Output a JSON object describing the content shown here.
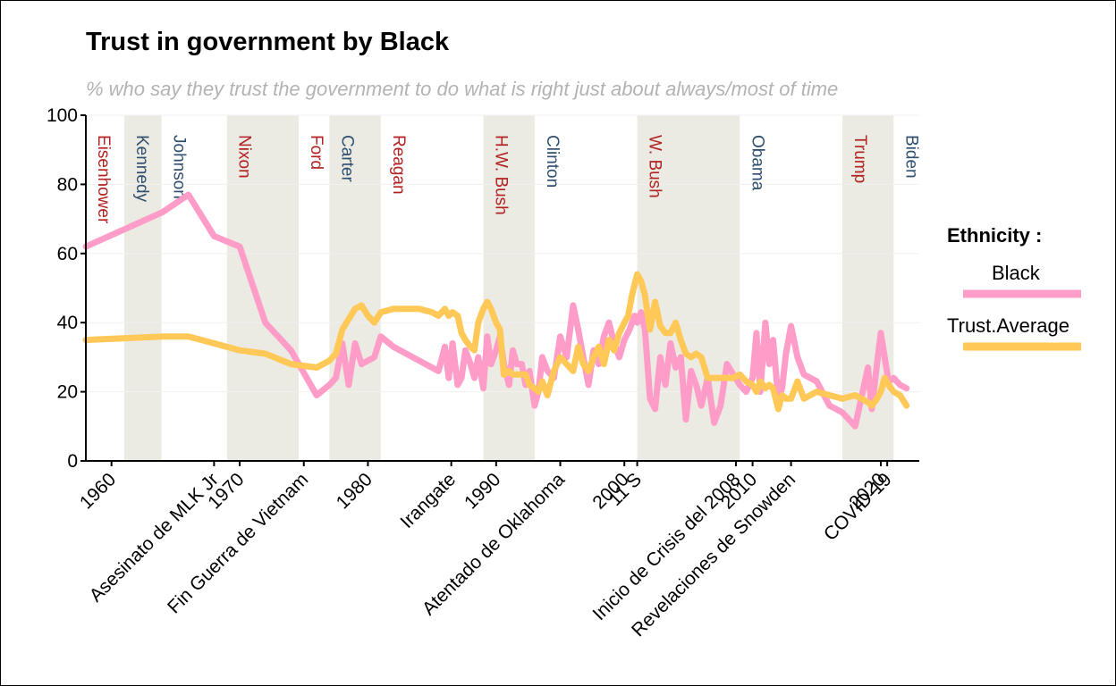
{
  "title": "Trust in government by Black",
  "subtitle": "% who say they trust the government to do what is right just about always/most of time",
  "legend": {
    "title": "Ethnicity :",
    "items": [
      {
        "label": "Black",
        "color": "#ff9dc8"
      },
      {
        "label": "Trust.Average",
        "color": "#ffc857"
      }
    ]
  },
  "chart_data": {
    "type": "line",
    "xlim": [
      1958,
      2023
    ],
    "ylim": [
      0,
      100
    ],
    "yticks": [
      0,
      20,
      40,
      60,
      80,
      100
    ],
    "xticks": [
      {
        "value": 1960,
        "label": "1960"
      },
      {
        "value": 1970,
        "label": "1970"
      },
      {
        "value": 1980,
        "label": "1980"
      },
      {
        "value": 1990,
        "label": "1990"
      },
      {
        "value": 2000,
        "label": "2000"
      },
      {
        "value": 2010,
        "label": "2010"
      },
      {
        "value": 2020,
        "label": "2020"
      }
    ],
    "events": [
      {
        "value": 1968,
        "label": "Asesinato de MLK Jr"
      },
      {
        "value": 1975,
        "label": "Fin Guerra de Vietnam"
      },
      {
        "value": 1986.5,
        "label": "Irangate"
      },
      {
        "value": 1995,
        "label": "Atentado de Oklahoma"
      },
      {
        "value": 2001,
        "label": "11 S"
      },
      {
        "value": 2008.7,
        "label": "Inicio de Crisis del 2008"
      },
      {
        "value": 2013,
        "label": "Revelaciones de Snowden"
      },
      {
        "value": 2020.5,
        "label": "COVID-19"
      }
    ],
    "presidents": [
      {
        "name": "Eisenhower",
        "start": 1958,
        "end": 1961,
        "party": "R",
        "shaded": false
      },
      {
        "name": "Kennedy",
        "start": 1961,
        "end": 1963.9,
        "party": "D",
        "shaded": true
      },
      {
        "name": "Johnson",
        "start": 1963.9,
        "end": 1969,
        "party": "D",
        "shaded": false
      },
      {
        "name": "Nixon",
        "start": 1969,
        "end": 1974.6,
        "party": "R",
        "shaded": true
      },
      {
        "name": "Ford",
        "start": 1974.6,
        "end": 1977,
        "party": "R",
        "shaded": false
      },
      {
        "name": "Carter",
        "start": 1977,
        "end": 1981,
        "party": "D",
        "shaded": true
      },
      {
        "name": "Reagan",
        "start": 1981,
        "end": 1989,
        "party": "R",
        "shaded": false
      },
      {
        "name": "H.W. Bush",
        "start": 1989,
        "end": 1993,
        "party": "R",
        "shaded": true
      },
      {
        "name": "Clinton",
        "start": 1993,
        "end": 2001,
        "party": "D",
        "shaded": false
      },
      {
        "name": "W. Bush",
        "start": 2001,
        "end": 2009,
        "party": "R",
        "shaded": true
      },
      {
        "name": "Obama",
        "start": 2009,
        "end": 2017,
        "party": "D",
        "shaded": false
      },
      {
        "name": "Trump",
        "start": 2017,
        "end": 2021,
        "party": "R",
        "shaded": true
      },
      {
        "name": "Biden",
        "start": 2021,
        "end": 2023,
        "party": "D",
        "shaded": false
      }
    ],
    "party_colors": {
      "R": "#b22222",
      "D": "#2f4f6f"
    },
    "shade_color": "#ebebe3",
    "series": [
      {
        "name": "Black",
        "color": "#ff9dc8",
        "x": [
          1958,
          1964,
          1966,
          1968,
          1970,
          1972,
          1974,
          1976,
          1977,
          1977.5,
          1978,
          1978.5,
          1979,
          1979.5,
          1980,
          1980.5,
          1981,
          1982,
          1984,
          1985.5,
          1986,
          1986.3,
          1986.6,
          1987,
          1987.3,
          1987.6,
          1988,
          1988.3,
          1988.6,
          1989,
          1989.3,
          1989.6,
          1990,
          1990.3,
          1990.6,
          1991,
          1991.3,
          1991.6,
          1992,
          1992.3,
          1992.6,
          1993,
          1993.3,
          1993.6,
          1994,
          1994.5,
          1995,
          1995.5,
          1996,
          1996.4,
          1996.8,
          1997.2,
          1997.6,
          1998,
          1998.4,
          1998.8,
          1999.2,
          1999.6,
          2000,
          2000.4,
          2000.8,
          2001,
          2001.3,
          2001.6,
          2002,
          2002.4,
          2002.8,
          2003.2,
          2003.6,
          2004,
          2004.4,
          2004.8,
          2005.2,
          2005.6,
          2006,
          2006.5,
          2007,
          2007.5,
          2008,
          2008.5,
          2009,
          2009.5,
          2010,
          2010.3,
          2010.6,
          2011,
          2011.3,
          2011.6,
          2012,
          2012.3,
          2012.6,
          2013,
          2013.5,
          2014,
          2015,
          2016,
          2017,
          2018,
          2019,
          2019.3,
          2019.7,
          2020,
          2020.3,
          2020.6,
          2021,
          2021.5,
          2022
        ],
        "y": [
          62,
          72,
          77,
          65,
          62,
          40,
          32,
          19,
          22,
          24,
          34,
          22,
          34,
          28,
          29,
          30,
          36,
          33,
          29,
          26,
          33,
          24,
          34,
          22,
          24,
          32,
          28,
          24,
          30,
          21,
          36,
          28,
          32,
          36,
          28,
          22,
          32,
          28,
          28,
          22,
          26,
          16,
          20,
          30,
          26,
          24,
          36,
          30,
          45,
          38,
          30,
          22,
          32,
          28,
          36,
          40,
          34,
          30,
          35,
          38,
          42,
          40,
          43,
          38,
          18,
          15,
          30,
          22,
          34,
          27,
          30,
          12,
          26,
          22,
          16,
          24,
          11,
          16,
          28,
          25,
          22,
          20,
          24,
          37,
          20,
          40,
          28,
          35,
          18,
          21,
          31,
          39,
          30,
          25,
          23,
          16,
          14,
          10,
          27,
          15,
          28,
          37,
          30,
          23,
          24,
          22,
          21
        ],
        "stroke_width": 7
      },
      {
        "name": "Trust.Average",
        "color": "#ffc857",
        "x": [
          1958,
          1964,
          1966,
          1968,
          1970,
          1972,
          1974,
          1976,
          1977,
          1977.5,
          1978,
          1978.5,
          1979,
          1979.5,
          1980,
          1980.5,
          1981,
          1982,
          1984,
          1985,
          1985.5,
          1986,
          1986.3,
          1986.6,
          1987,
          1987.3,
          1987.6,
          1988,
          1988.3,
          1988.6,
          1989,
          1989.3,
          1989.6,
          1990,
          1990.3,
          1990.6,
          1991,
          1991.3,
          1991.6,
          1992,
          1992.3,
          1992.6,
          1993,
          1993.3,
          1993.6,
          1994,
          1994.5,
          1995,
          1995.5,
          1996,
          1996.4,
          1996.8,
          1997.2,
          1997.6,
          1998,
          1998.4,
          1998.8,
          1999.2,
          1999.6,
          2000,
          2000.3,
          2000.6,
          2001,
          2001.3,
          2001.6,
          2002,
          2002.4,
          2002.8,
          2003.2,
          2003.6,
          2004,
          2004.4,
          2004.8,
          2005.2,
          2005.6,
          2006,
          2006.5,
          2007,
          2007.5,
          2008,
          2008.5,
          2009,
          2009.5,
          2010,
          2010.3,
          2010.6,
          2011,
          2011.3,
          2011.6,
          2012,
          2012.3,
          2012.6,
          2013,
          2013.5,
          2014,
          2015,
          2016,
          2017,
          2018,
          2019,
          2019.3,
          2019.7,
          2020,
          2020.3,
          2020.6,
          2021,
          2021.5,
          2022
        ],
        "y": [
          35,
          36,
          36,
          34,
          32,
          31,
          28,
          27,
          29,
          31,
          38,
          41,
          44,
          45,
          42,
          40,
          43,
          44,
          44,
          43,
          42,
          44,
          42,
          43,
          42,
          37,
          35,
          33,
          32,
          40,
          44,
          46,
          44,
          40,
          38,
          25,
          26,
          25,
          25,
          25,
          25,
          22,
          21,
          20,
          23,
          19,
          26,
          30,
          28,
          26,
          33,
          28,
          26,
          30,
          33,
          28,
          35,
          32,
          37,
          40,
          42,
          48,
          54,
          52,
          48,
          38,
          46,
          39,
          37,
          37,
          40,
          35,
          31,
          30,
          31,
          30,
          24,
          24,
          24,
          24,
          24,
          25,
          23,
          22,
          20,
          23,
          21,
          22,
          21,
          15,
          19,
          18,
          18,
          23,
          18,
          20,
          19,
          18,
          19,
          17,
          16,
          18,
          20,
          24,
          22,
          20,
          19,
          16
        ],
        "stroke_width": 7
      }
    ]
  }
}
